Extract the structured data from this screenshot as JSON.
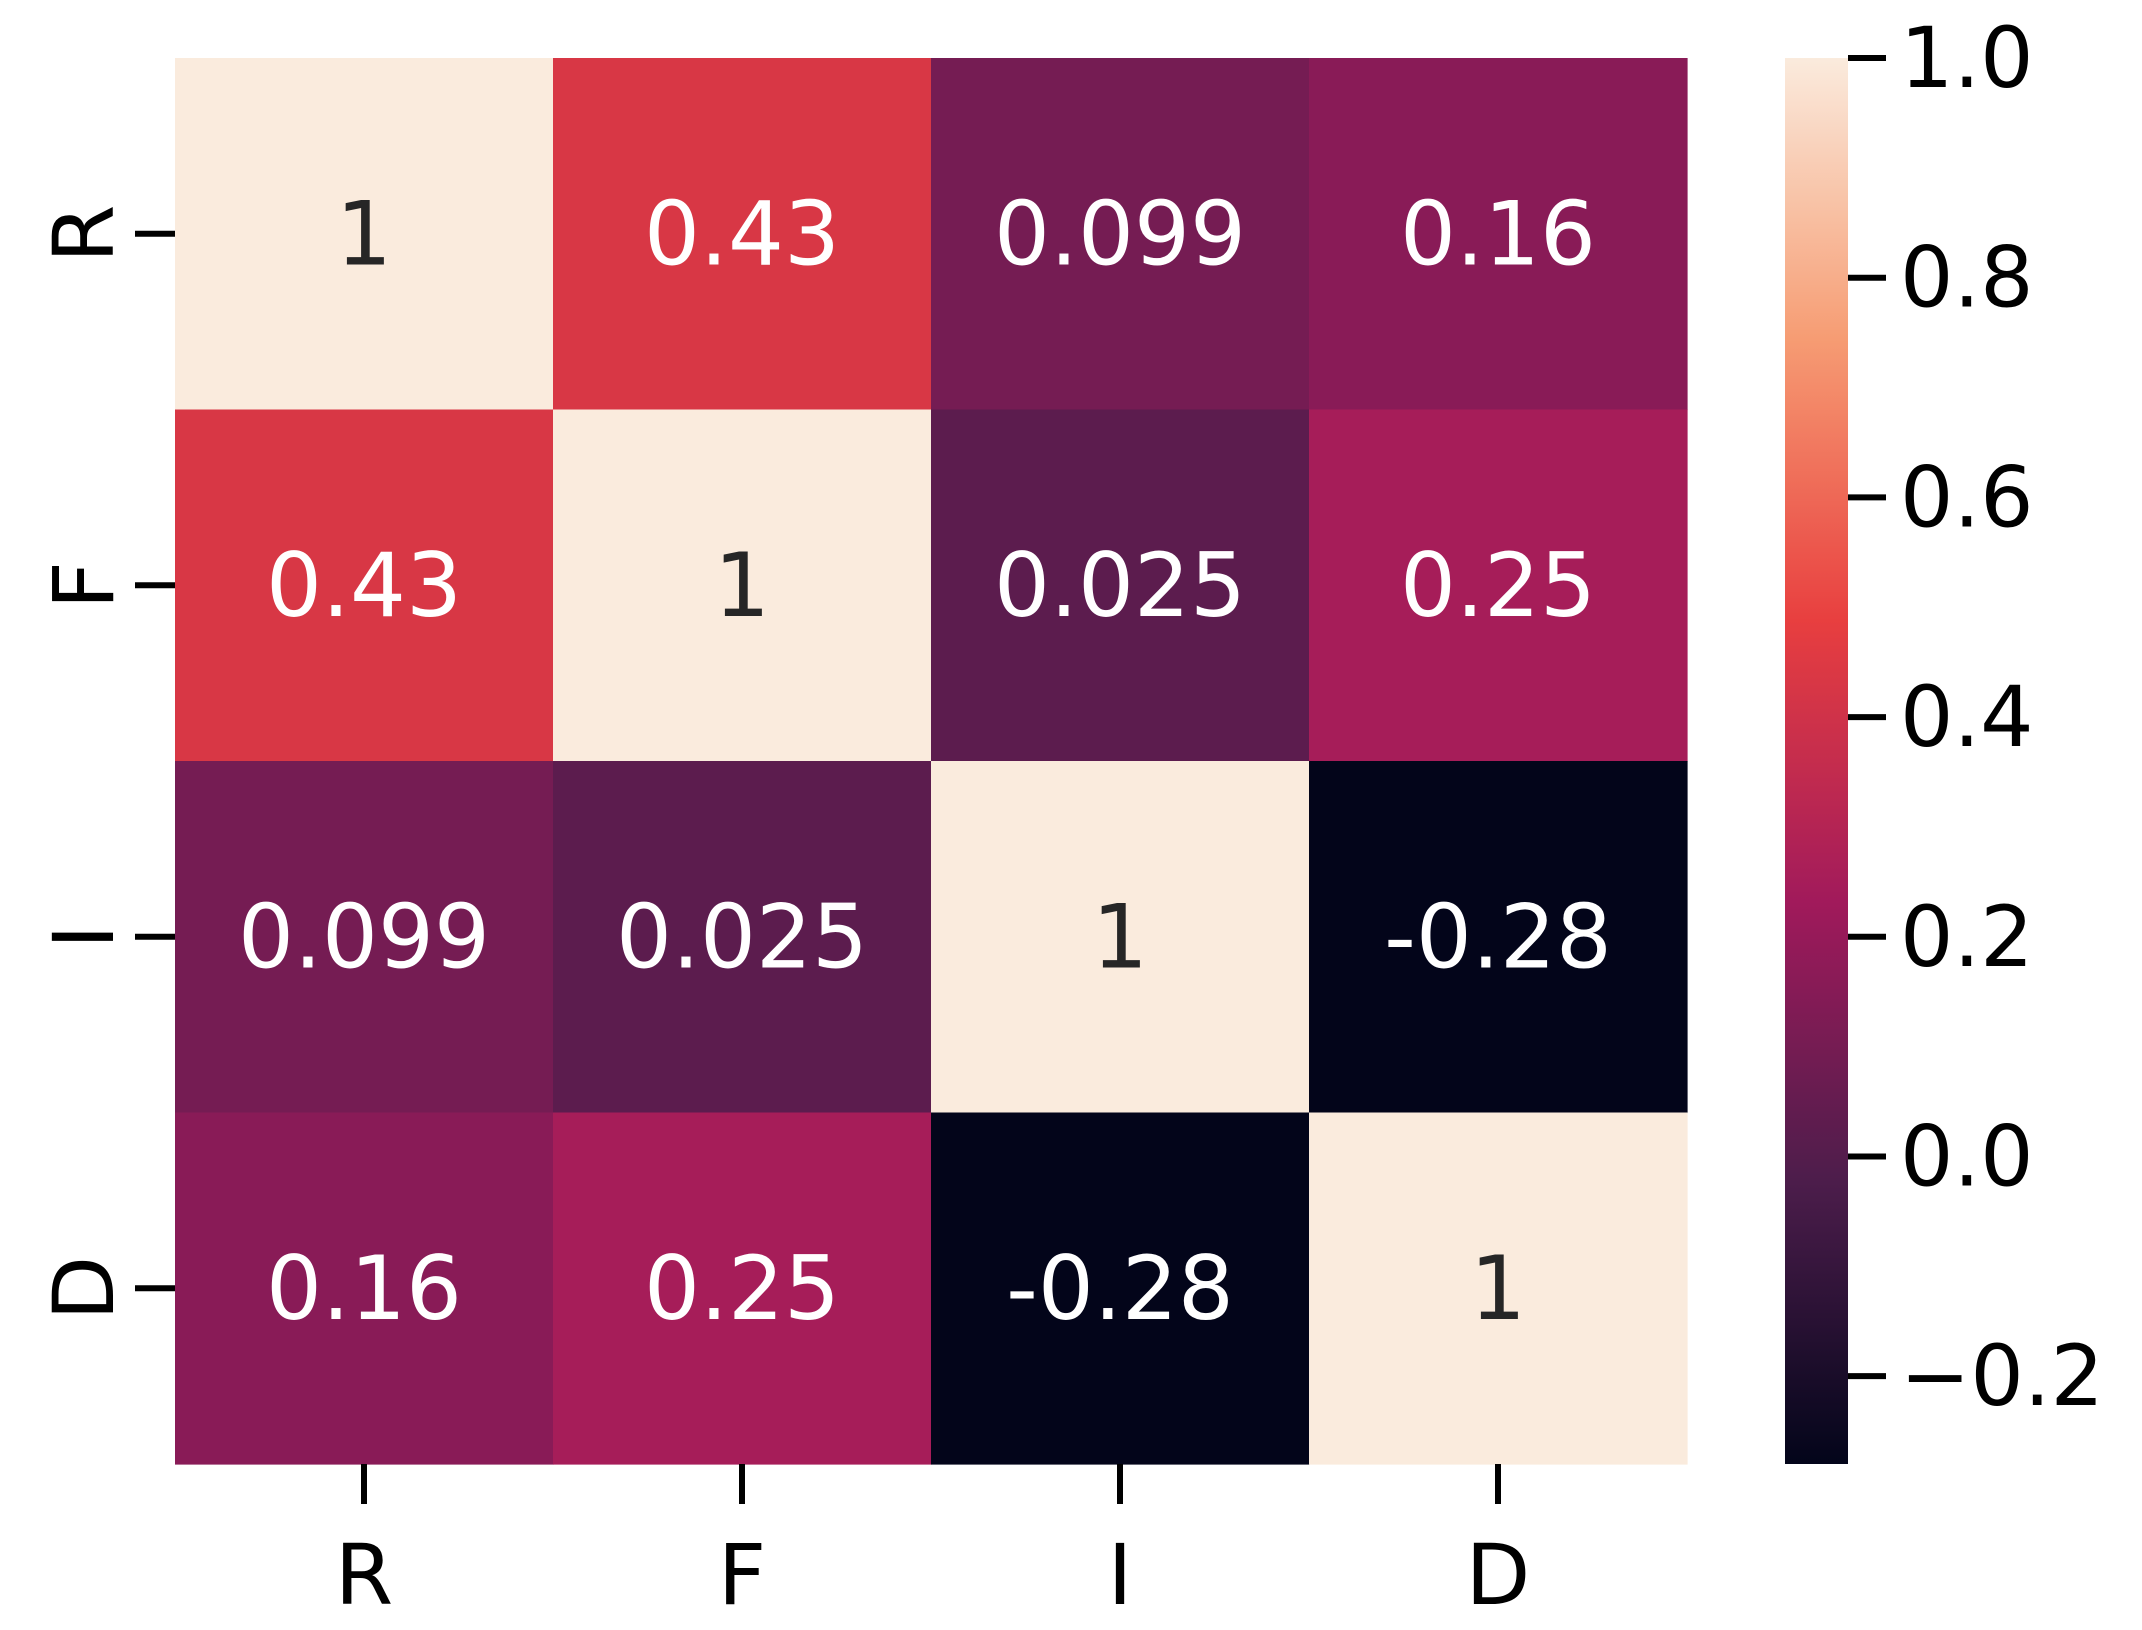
{
  "chart_data": {
    "type": "heatmap",
    "row_labels": [
      "R",
      "F",
      "I",
      "D"
    ],
    "col_labels": [
      "R",
      "F",
      "I",
      "D"
    ],
    "values": [
      [
        1,
        0.43,
        0.099,
        0.16
      ],
      [
        0.43,
        1,
        0.025,
        0.25
      ],
      [
        0.099,
        0.025,
        1,
        -0.28
      ],
      [
        0.16,
        0.25,
        -0.28,
        1
      ]
    ],
    "annotations": [
      [
        "1",
        "0.43",
        "0.099",
        "0.16"
      ],
      [
        "0.43",
        "1",
        "0.025",
        "0.25"
      ],
      [
        "0.099",
        "0.025",
        "1",
        "-0.28"
      ],
      [
        "0.16",
        "0.25",
        "-0.28",
        "1"
      ]
    ],
    "colorbar": {
      "range": [
        -0.28,
        1.0
      ],
      "ticks": [
        1.0,
        0.8,
        0.6,
        0.4,
        0.2,
        0.0,
        -0.2
      ],
      "tick_labels": [
        "1.0",
        "0.8",
        "0.6",
        "0.4",
        "0.2",
        "0.0",
        "−0.2"
      ],
      "colormap": "rocket",
      "stops": [
        "#03051a",
        "#4c1d4b",
        "#a11a5b",
        "#e83f3f",
        "#f69c73",
        "#faebdd"
      ]
    },
    "title": "",
    "xlabel": "",
    "ylabel": "",
    "grid": false,
    "annotation_dark_color": "#262626",
    "annotation_light_color": "#ffffff"
  }
}
